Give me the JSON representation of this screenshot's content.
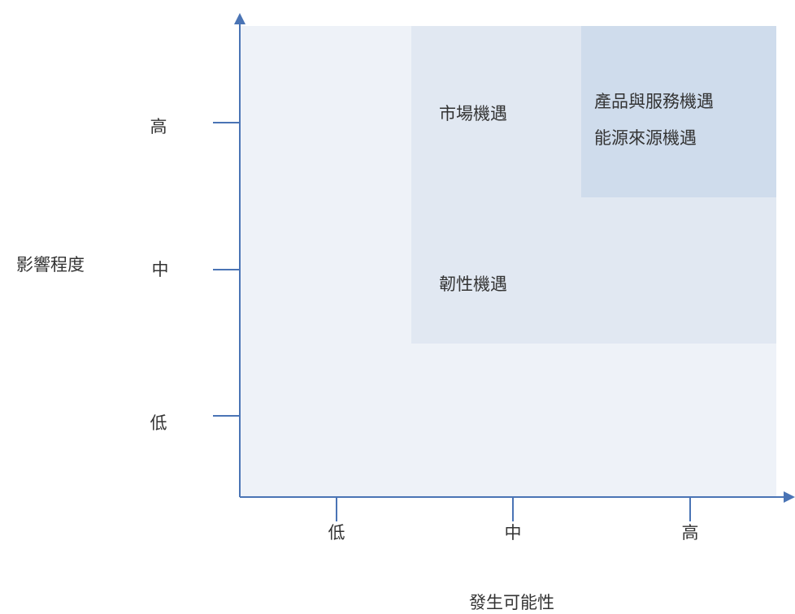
{
  "axes": {
    "y_title": "影響程度",
    "x_title": "發生可能性",
    "y_ticks": [
      "高",
      "中",
      "低"
    ],
    "x_ticks": [
      "低",
      "中",
      "高"
    ]
  },
  "zones": {
    "market": "市場機遇",
    "resilience": "韌性機遇",
    "products": "產品與服務機遇",
    "energy": "能源來源機遇"
  },
  "colors": {
    "axis": "#4a74b5",
    "plot_background": "#eef2f8",
    "zone_medium": "#e1e8f2",
    "zone_high": "#cfdcec"
  }
}
